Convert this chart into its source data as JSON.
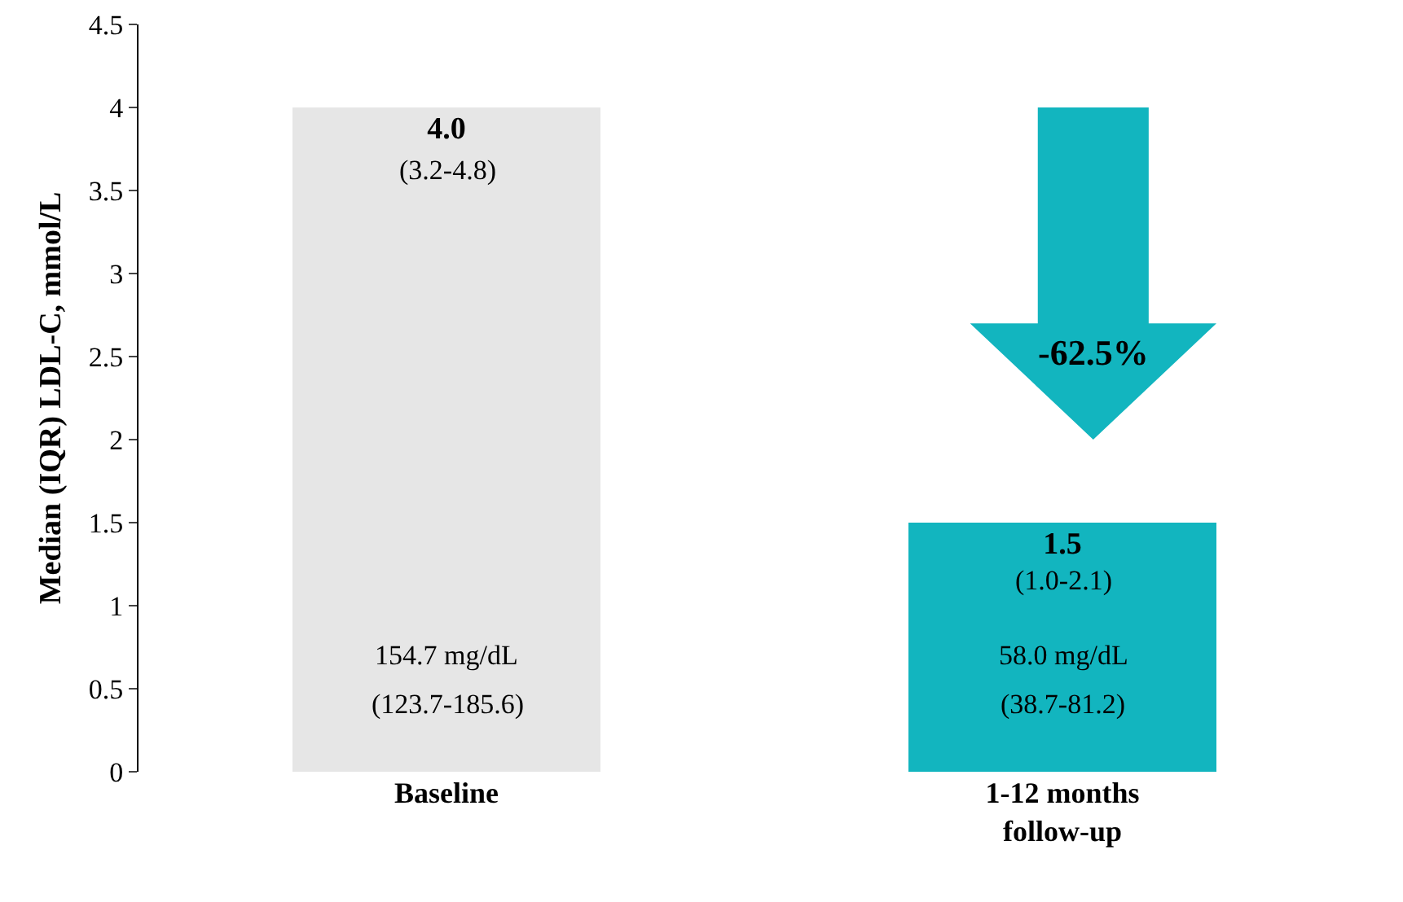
{
  "chart_data": {
    "type": "bar",
    "ylabel": "Median (IQR) LDL-C, mmol/L",
    "categories": [
      "Baseline",
      "1-12 months\nfollow-up"
    ],
    "values": [
      4.0,
      1.5
    ],
    "colors": [
      "#e6e6e6",
      "#12b5bf"
    ],
    "value_labels": [
      "4.0",
      "1.5"
    ],
    "ylim": [
      0,
      4.5
    ],
    "yticks": [
      0,
      0.5,
      1,
      1.5,
      2,
      2.5,
      3,
      3.5,
      4,
      4.5
    ],
    "grid": false,
    "legend": false,
    "annotations": [
      "(3.2-4.8)",
      "154.7 mg/dL",
      "(123.7-185.6)",
      "(1.0-2.1)",
      "58.0 mg/dL",
      "(38.7-81.2)",
      "-62.5%"
    ]
  }
}
